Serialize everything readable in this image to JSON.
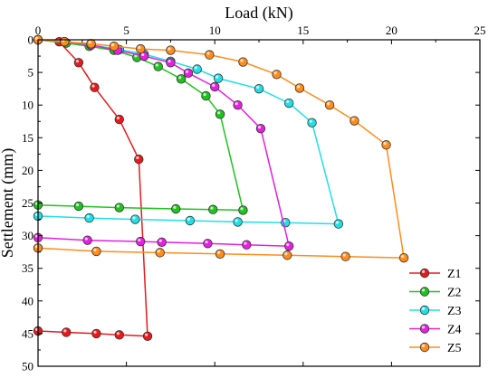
{
  "chart_data": {
    "type": "line",
    "xlabel": "Load (kN)",
    "ylabel": "Settlement (mm)",
    "xlim": [
      0,
      25
    ],
    "ylim": [
      0,
      50
    ],
    "y_inverted": true,
    "x_axis_position": "top",
    "x_ticks": [
      0,
      5,
      10,
      15,
      20,
      25
    ],
    "y_ticks": [
      0,
      5,
      10,
      15,
      20,
      25,
      30,
      35,
      40,
      45,
      50
    ],
    "grid": false,
    "legend_position": "bottom-right",
    "series": [
      {
        "name": "Z1",
        "color": "#e8191b",
        "points": [
          [
            0,
            0
          ],
          [
            1.2,
            0.3
          ],
          [
            2.3,
            3.5
          ],
          [
            3.2,
            7.3
          ],
          [
            4.6,
            12.2
          ],
          [
            5.7,
            18.3
          ],
          [
            6.2,
            45.4
          ],
          [
            4.6,
            45.2
          ],
          [
            3.3,
            45.0
          ],
          [
            1.6,
            44.8
          ],
          [
            0,
            44.6
          ]
        ]
      },
      {
        "name": "Z2",
        "color": "#1fc31f",
        "points": [
          [
            0,
            0
          ],
          [
            1.6,
            0.5
          ],
          [
            2.9,
            1.0
          ],
          [
            4.3,
            1.6
          ],
          [
            5.6,
            2.7
          ],
          [
            6.8,
            4.1
          ],
          [
            8.1,
            6.0
          ],
          [
            9.5,
            8.6
          ],
          [
            10.3,
            11.4
          ],
          [
            11.6,
            26.1
          ],
          [
            9.9,
            26.0
          ],
          [
            7.8,
            25.9
          ],
          [
            4.6,
            25.7
          ],
          [
            2.3,
            25.5
          ],
          [
            0,
            25.3
          ]
        ]
      },
      {
        "name": "Z3",
        "color": "#1fe0e6",
        "points": [
          [
            0,
            0
          ],
          [
            1.5,
            0.3
          ],
          [
            3.0,
            0.8
          ],
          [
            4.6,
            1.5
          ],
          [
            6.0,
            2.2
          ],
          [
            7.5,
            3.3
          ],
          [
            9.0,
            4.5
          ],
          [
            10.2,
            5.9
          ],
          [
            12.5,
            7.5
          ],
          [
            14.2,
            9.7
          ],
          [
            15.5,
            12.7
          ],
          [
            17.0,
            28.2
          ],
          [
            14.0,
            28.0
          ],
          [
            11.3,
            27.9
          ],
          [
            8.6,
            27.7
          ],
          [
            5.5,
            27.5
          ],
          [
            2.9,
            27.3
          ],
          [
            0,
            27.0
          ]
        ]
      },
      {
        "name": "Z4",
        "color": "#e61fe0",
        "points": [
          [
            0,
            0
          ],
          [
            1.5,
            0.3
          ],
          [
            3.0,
            0.8
          ],
          [
            4.5,
            1.6
          ],
          [
            6.0,
            2.5
          ],
          [
            7.5,
            3.5
          ],
          [
            8.5,
            5.1
          ],
          [
            10.0,
            7.2
          ],
          [
            11.3,
            10.0
          ],
          [
            12.6,
            13.6
          ],
          [
            14.2,
            31.6
          ],
          [
            11.8,
            31.4
          ],
          [
            9.6,
            31.2
          ],
          [
            7.0,
            31.0
          ],
          [
            5.8,
            30.9
          ],
          [
            2.8,
            30.7
          ],
          [
            0,
            30.3
          ]
        ]
      },
      {
        "name": "Z5",
        "color": "#ff8c1a",
        "points": [
          [
            0,
            0
          ],
          [
            1.5,
            0.3
          ],
          [
            3.0,
            0.6
          ],
          [
            4.3,
            1.0
          ],
          [
            5.8,
            1.4
          ],
          [
            7.5,
            1.6
          ],
          [
            9.7,
            2.3
          ],
          [
            11.6,
            3.4
          ],
          [
            13.5,
            5.3
          ],
          [
            14.8,
            7.4
          ],
          [
            16.5,
            10.0
          ],
          [
            17.9,
            12.4
          ],
          [
            19.7,
            16.1
          ],
          [
            20.7,
            33.4
          ],
          [
            17.4,
            33.2
          ],
          [
            14.1,
            33.0
          ],
          [
            10.3,
            32.8
          ],
          [
            6.9,
            32.6
          ],
          [
            3.3,
            32.4
          ],
          [
            0,
            31.9
          ]
        ]
      }
    ]
  }
}
